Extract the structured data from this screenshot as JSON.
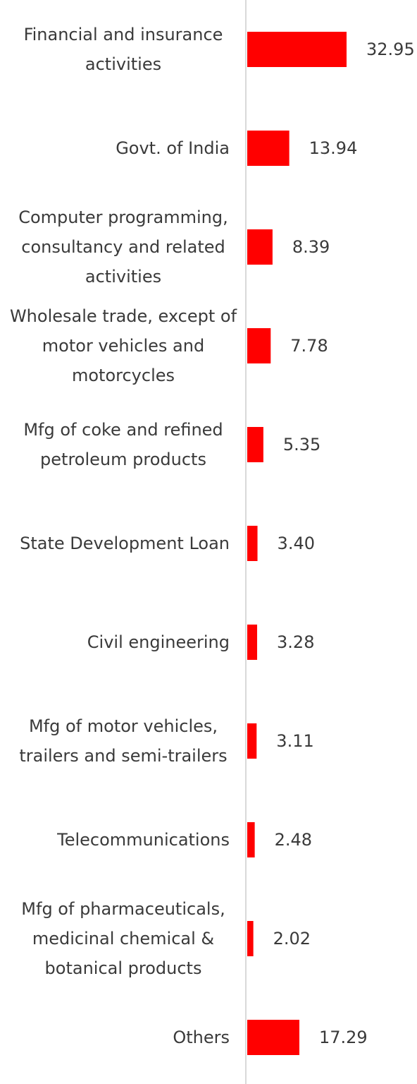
{
  "chart_data": {
    "type": "bar",
    "orientation": "horizontal",
    "title": "",
    "xlabel": "",
    "ylabel": "",
    "grid": false,
    "legend": "none",
    "bar_color": "#ff0000",
    "axis_color": "#d9d9d9",
    "text_color": "#3a3a3a",
    "xlim": [
      0,
      35
    ],
    "categories": [
      "Financial and insurance activities",
      "Govt. of India",
      "Computer programming, consultancy and related activities",
      "Wholesale trade, except of motor vehicles and motorcycles",
      "Mfg of coke and refined petroleum products",
      "State Development Loan",
      "Civil engineering",
      "Mfg of motor vehicles, trailers and semi-trailers",
      "Telecommunications",
      "Mfg of pharmaceuticals, medicinal chemical & botanical products",
      "Others"
    ],
    "category_lines": [
      [
        "Financial and insurance",
        "activities"
      ],
      [
        "Govt. of India"
      ],
      [
        "Computer programming,",
        "consultancy and related",
        "activities"
      ],
      [
        "Wholesale trade, except of",
        "motor vehicles and",
        "motorcycles"
      ],
      [
        "Mfg of coke and refined",
        "petroleum products"
      ],
      [
        "State Development Loan"
      ],
      [
        "Civil engineering"
      ],
      [
        "Mfg of motor vehicles,",
        "trailers and semi-trailers"
      ],
      [
        "Telecommunications"
      ],
      [
        "Mfg of pharmaceuticals,",
        "medicinal chemical &",
        "botanical products"
      ],
      [
        "Others"
      ]
    ],
    "values": [
      32.95,
      13.94,
      8.39,
      7.78,
      5.35,
      3.4,
      3.28,
      3.11,
      2.48,
      2.02,
      17.29
    ],
    "value_labels": [
      "32.95",
      "13.94",
      "8.39",
      "7.78",
      "5.35",
      "3.40",
      "3.28",
      "3.11",
      "2.48",
      "2.02",
      "17.29"
    ]
  }
}
